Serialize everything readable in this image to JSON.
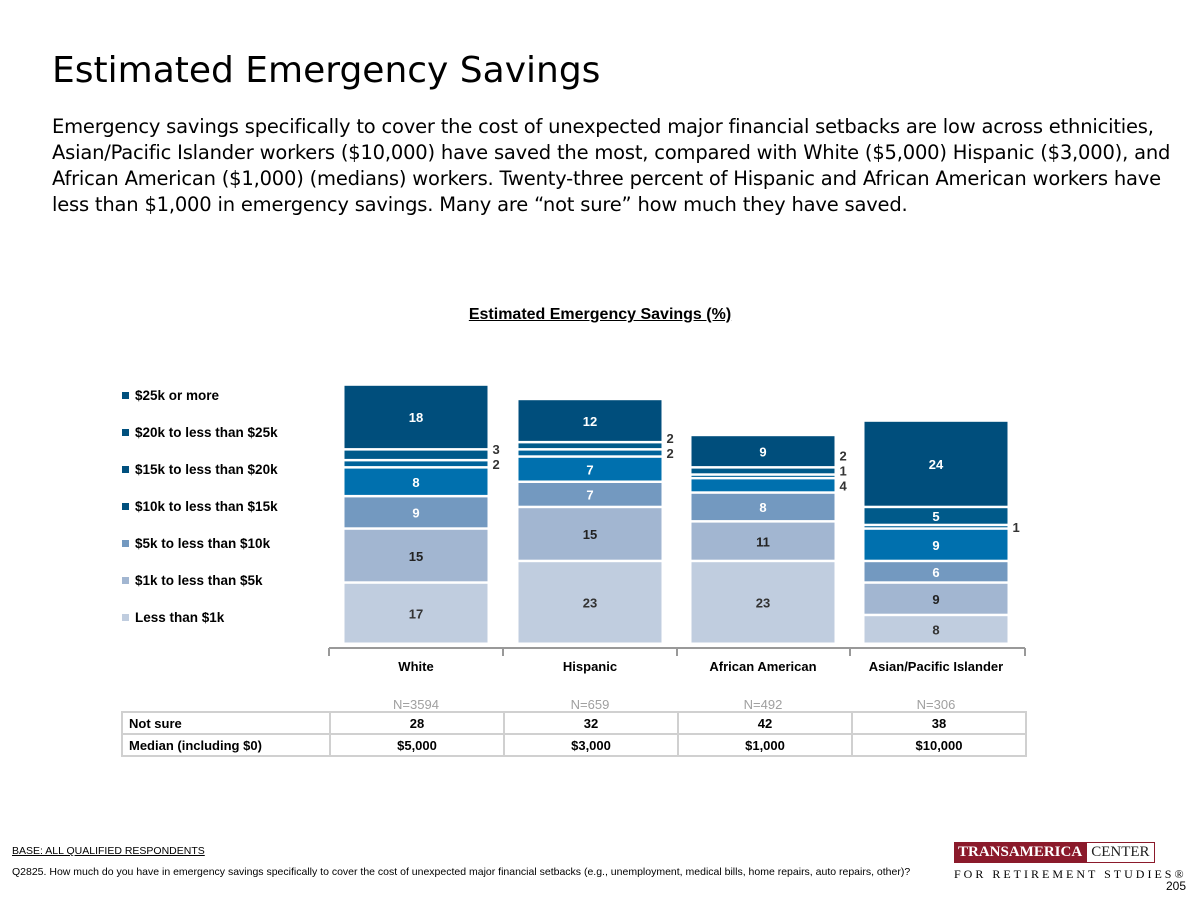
{
  "title": "Estimated Emergency Savings",
  "description": "Emergency savings specifically to cover the cost of unexpected major financial setbacks are low across ethnicities, Asian/Pacific Islander workers ($10,000) have saved the most, compared with White ($5,000) Hispanic ($3,000), and African American ($1,000) (medians) workers. Twenty-three percent of Hispanic and African American workers have less than $1,000 in emergency savings. Many are “not sure” how much they have saved.",
  "chart_data": {
    "type": "bar",
    "stacked": true,
    "title": "Estimated Emergency Savings (%)",
    "categories": [
      "White",
      "Hispanic",
      "African American",
      "Asian/Pacific Islander"
    ],
    "sample_sizes": [
      "N=3594",
      "N=659",
      "N=492",
      "N=306"
    ],
    "legend_position": "left",
    "series": [
      {
        "name": "Less than $1k",
        "color": "#c0cddf",
        "label_color": "#333333",
        "values": [
          17,
          23,
          23,
          8
        ]
      },
      {
        "name": "$1k to less than $5k",
        "color": "#a2b6d1",
        "label_color": "#222222",
        "values": [
          15,
          15,
          11,
          9
        ]
      },
      {
        "name": "$5k to less than $10k",
        "color": "#7399c0",
        "label_color": "#ffffff",
        "values": [
          9,
          7,
          8,
          6
        ]
      },
      {
        "name": "$10k to less than $15k",
        "color": "#0070ae",
        "label_color": "#ffffff",
        "values": [
          8,
          7,
          4,
          9
        ]
      },
      {
        "name": "$15k to less than $20k",
        "color": "#00639a",
        "label_color": "#ffffff",
        "values": [
          2,
          2,
          1,
          1
        ]
      },
      {
        "name": "$20k to less than $25k",
        "color": "#005a8a",
        "label_color": "#ffffff",
        "values": [
          3,
          2,
          2,
          5
        ]
      },
      {
        "name": "$25k or more",
        "color": "#004e7c",
        "label_color": "#ffffff",
        "values": [
          18,
          12,
          9,
          24
        ]
      }
    ]
  },
  "table": {
    "rows": [
      {
        "label": "Not sure",
        "values": [
          "28",
          "32",
          "42",
          "38"
        ]
      },
      {
        "label": "Median (including $0)",
        "values": [
          "$5,000",
          "$3,000",
          "$1,000",
          "$10,000"
        ]
      }
    ]
  },
  "footer": {
    "base": "BASE: ALL QUALIFIED RESPONDENTS",
    "question": "Q2825. How much do you have in emergency savings specifically to cover the cost of unexpected major financial setbacks (e.g., unemployment, medical bills, home repairs, auto repairs, other)?",
    "logo_line1a": "TRANSAMERICA",
    "logo_line1b": "CENTER",
    "logo_line2": "FOR RETIREMENT STUDIES®",
    "page": "205"
  }
}
